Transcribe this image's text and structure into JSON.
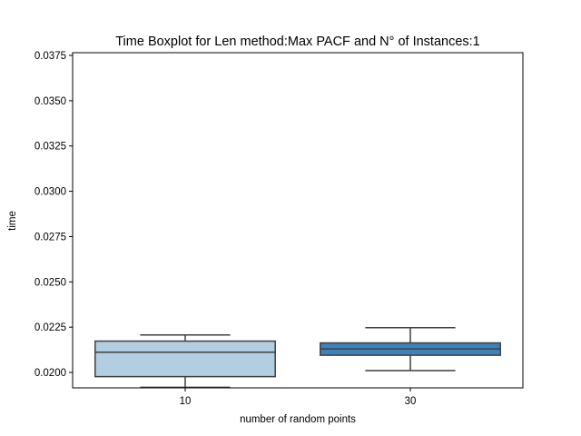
{
  "chart_data": {
    "type": "boxplot",
    "title": "Time Boxplot for Len method:Max PACF and N° of Instances:1",
    "xlabel": "number of random points",
    "ylabel": "time",
    "categories": [
      "10",
      "30"
    ],
    "ylim": [
      0.01915,
      0.03765
    ],
    "yticks": [
      "0.0200",
      "0.0225",
      "0.0250",
      "0.0275",
      "0.0300",
      "0.0325",
      "0.0350",
      "0.0375"
    ],
    "grid": false,
    "boxes": [
      {
        "label": "10",
        "whisker_low": 0.01918,
        "q1": 0.01977,
        "median": 0.02112,
        "q3": 0.02173,
        "whisker_high": 0.02207,
        "color": "#b3cde1"
      },
      {
        "label": "30",
        "whisker_low": 0.0201,
        "q1": 0.02095,
        "median": 0.0213,
        "q3": 0.02163,
        "whisker_high": 0.02247,
        "color": "#3f82ba"
      }
    ],
    "line_color": "#3f3f3f"
  }
}
